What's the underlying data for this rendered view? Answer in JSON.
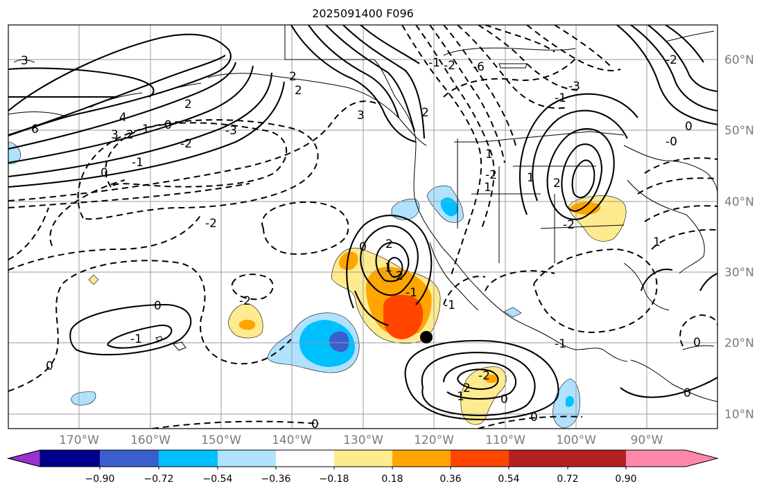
{
  "title": "2025091400 F096",
  "map": {
    "lon_labels": [
      "170°W",
      "160°W",
      "150°W",
      "140°W",
      "130°W",
      "120°W",
      "110°W",
      "100°W",
      "90°W"
    ],
    "lat_labels": [
      "60°N",
      "50°N",
      "40°N",
      "30°N",
      "20°N",
      "10°N"
    ],
    "contour_labels": [
      "3",
      "6",
      "4",
      "3",
      "2",
      "1",
      "0",
      "2",
      "2",
      "2",
      "3",
      "-2",
      "-1",
      "0",
      "-2",
      "-3",
      "-2",
      "-1",
      "0",
      "2",
      "-2",
      "-1",
      "1",
      "-1",
      "2",
      "-2",
      "0",
      "1",
      "-1",
      "0",
      "2",
      "-2",
      "2",
      "1",
      "-1",
      "1",
      "-1",
      "1",
      "-2",
      "-2",
      "-6",
      "-3",
      "1",
      "-2",
      "0",
      "-0",
      "0"
    ],
    "storm_marker": "tropical-cyclone-position"
  },
  "colorbar": {
    "tick_labels": [
      "−0.90",
      "−0.72",
      "−0.54",
      "−0.36",
      "−0.18",
      "0.18",
      "0.36",
      "0.54",
      "0.72",
      "0.90"
    ],
    "colors": [
      "#9932cc",
      "#00008b",
      "#3a5fcd",
      "#00bfff",
      "#b0e2ff",
      "#ffffff",
      "#ffeb8f",
      "#ffa500",
      "#ff4500",
      "#b22222",
      "#ff88aa"
    ]
  }
}
